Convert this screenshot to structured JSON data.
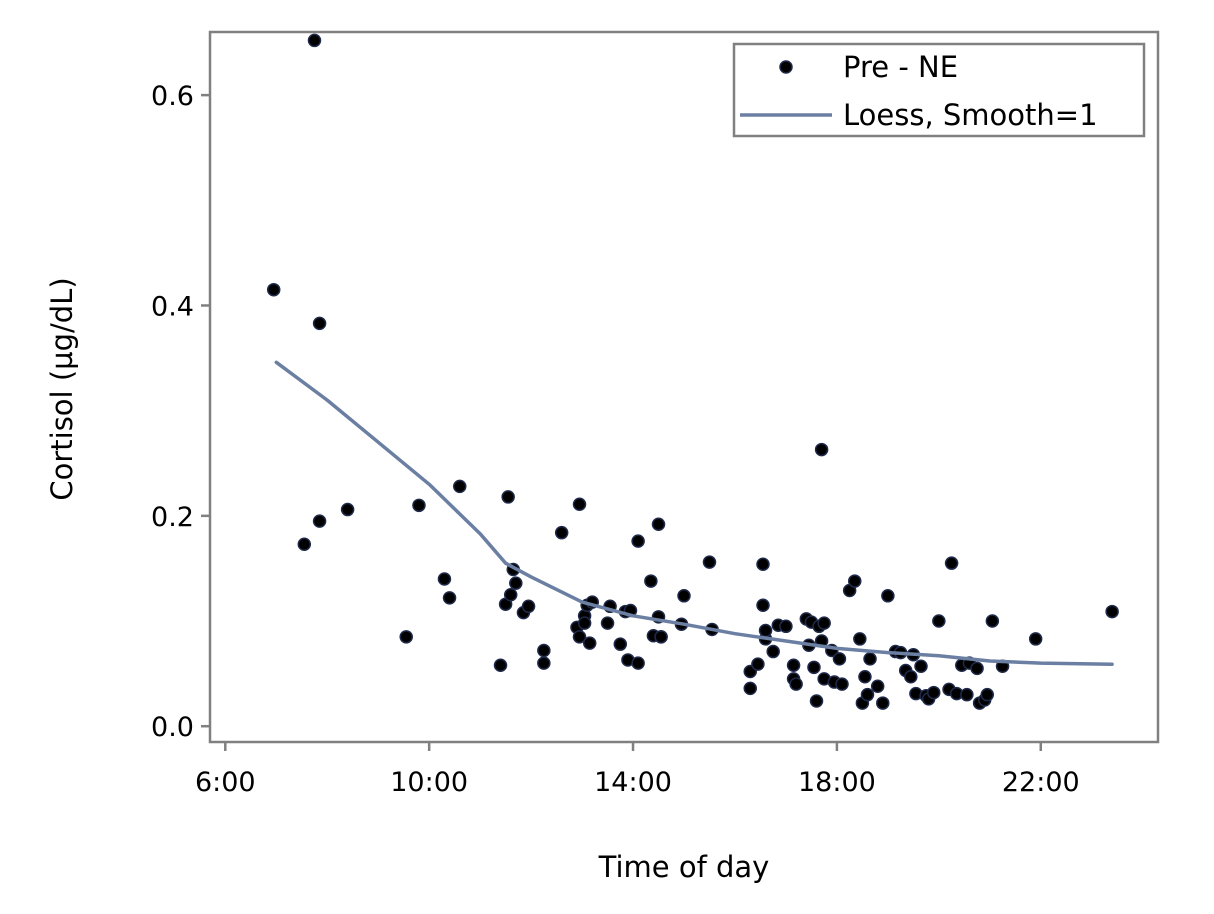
{
  "chart_data": {
    "type": "scatter",
    "xlabel": "Time of day",
    "ylabel": "Cortisol (µg/dL)",
    "xlim": [
      5.7,
      24.3
    ],
    "ylim": [
      -0.015,
      0.66
    ],
    "x_ticks": [
      {
        "value": 6,
        "label": "6:00"
      },
      {
        "value": 10,
        "label": "10:00"
      },
      {
        "value": 14,
        "label": "14:00"
      },
      {
        "value": 18,
        "label": "18:00"
      },
      {
        "value": 22,
        "label": "22:00"
      }
    ],
    "y_ticks": [
      {
        "value": 0.0,
        "label": "0.0"
      },
      {
        "value": 0.2,
        "label": "0.2"
      },
      {
        "value": 0.4,
        "label": "0.4"
      },
      {
        "value": 0.6,
        "label": "0.6"
      }
    ],
    "grid": false,
    "legend": {
      "position": "top-right",
      "entries": [
        {
          "label": "Pre - NE",
          "kind": "marker"
        },
        {
          "label": "Loess, Smooth=1",
          "kind": "line"
        }
      ]
    },
    "colors": {
      "marker_fill": "#000000",
      "marker_edge": "#1f2a4a",
      "line": "#6b7fa3",
      "frame": "#808080"
    },
    "series": [
      {
        "name": "Pre - NE",
        "kind": "scatter",
        "x": [
          6.95,
          7.75,
          7.85,
          7.55,
          7.85,
          8.4,
          9.55,
          9.8,
          10.3,
          10.4,
          10.6,
          11.4,
          11.5,
          11.55,
          11.6,
          11.65,
          11.7,
          11.85,
          11.95,
          12.25,
          12.25,
          12.6,
          12.9,
          12.95,
          12.95,
          13.05,
          13.05,
          13.1,
          13.15,
          13.2,
          13.5,
          13.55,
          13.75,
          13.85,
          13.9,
          13.95,
          14.1,
          14.1,
          14.35,
          14.4,
          14.5,
          14.5,
          14.55,
          14.55,
          14.95,
          15.0,
          15.5,
          15.55,
          16.3,
          16.3,
          16.45,
          16.55,
          16.55,
          16.6,
          16.6,
          16.75,
          16.85,
          17.0,
          17.15,
          17.15,
          17.2,
          17.4,
          17.45,
          17.5,
          17.55,
          17.6,
          17.65,
          17.7,
          17.7,
          17.75,
          17.75,
          17.9,
          17.95,
          18.05,
          18.1,
          18.25,
          18.35,
          18.45,
          18.5,
          18.55,
          18.6,
          18.65,
          18.8,
          18.9,
          19.0,
          19.15,
          19.25,
          19.35,
          19.45,
          19.5,
          19.55,
          19.65,
          19.75,
          19.8,
          19.9,
          20.0,
          20.2,
          20.25,
          20.35,
          20.45,
          20.55,
          20.6,
          20.75,
          20.8,
          20.9,
          20.95,
          21.05,
          21.25,
          21.9,
          23.4
        ],
        "y": [
          0.415,
          0.652,
          0.383,
          0.173,
          0.195,
          0.206,
          0.085,
          0.21,
          0.14,
          0.122,
          0.228,
          0.058,
          0.116,
          0.218,
          0.125,
          0.149,
          0.136,
          0.108,
          0.114,
          0.072,
          0.06,
          0.184,
          0.094,
          0.085,
          0.211,
          0.105,
          0.098,
          0.115,
          0.079,
          0.118,
          0.098,
          0.114,
          0.078,
          0.109,
          0.063,
          0.11,
          0.176,
          0.06,
          0.138,
          0.086,
          0.104,
          0.192,
          0.085,
          0.085,
          0.097,
          0.124,
          0.156,
          0.092,
          0.036,
          0.052,
          0.059,
          0.115,
          0.154,
          0.083,
          0.091,
          0.071,
          0.096,
          0.095,
          0.058,
          0.045,
          0.04,
          0.102,
          0.077,
          0.099,
          0.056,
          0.024,
          0.095,
          0.263,
          0.081,
          0.045,
          0.098,
          0.072,
          0.042,
          0.064,
          0.04,
          0.129,
          0.138,
          0.083,
          0.022,
          0.047,
          0.03,
          0.064,
          0.038,
          0.022,
          0.124,
          0.071,
          0.07,
          0.053,
          0.047,
          0.068,
          0.031,
          0.057,
          0.029,
          0.026,
          0.032,
          0.1,
          0.035,
          0.155,
          0.031,
          0.058,
          0.03,
          0.06,
          0.055,
          0.022,
          0.025,
          0.03,
          0.1,
          0.057,
          0.083,
          0.109
        ]
      },
      {
        "name": "Loess, Smooth=1",
        "kind": "line",
        "x": [
          7.0,
          8.0,
          9.0,
          10.0,
          11.0,
          11.5,
          12.0,
          13.0,
          14.0,
          15.0,
          16.0,
          17.0,
          18.0,
          19.0,
          20.0,
          21.0,
          22.0,
          23.4
        ],
        "y": [
          0.346,
          0.31,
          0.27,
          0.23,
          0.183,
          0.155,
          0.142,
          0.118,
          0.105,
          0.097,
          0.088,
          0.081,
          0.074,
          0.07,
          0.067,
          0.062,
          0.06,
          0.059
        ]
      }
    ]
  }
}
